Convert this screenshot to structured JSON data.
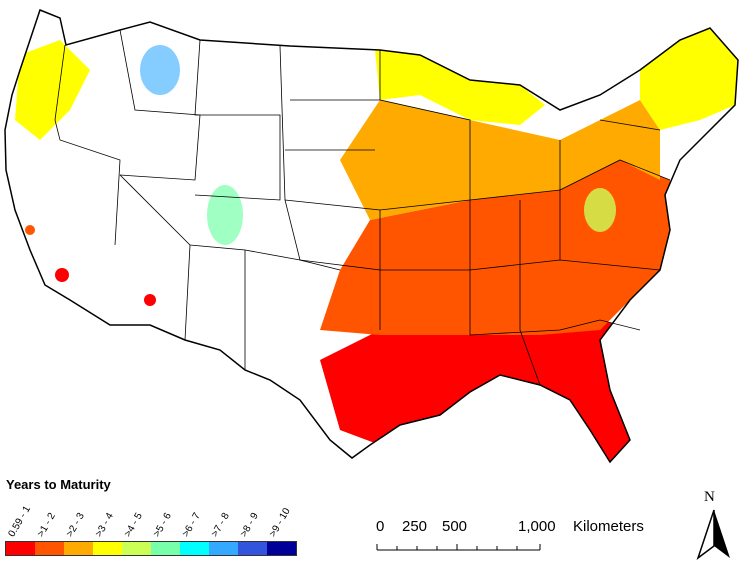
{
  "legend": {
    "title": "Years to Maturity",
    "classes": [
      {
        "label": "0.59 - 1",
        "color": "#ff0000"
      },
      {
        "label": ">1 - 2",
        "color": "#ff5500"
      },
      {
        "label": ">2 - 3",
        "color": "#ffaa00"
      },
      {
        "label": ">3 - 4",
        "color": "#ffff00"
      },
      {
        "label": ">4 - 5",
        "color": "#ccff55"
      },
      {
        "label": ">5 - 6",
        "color": "#77ffaa"
      },
      {
        "label": ">6 - 7",
        "color": "#00ffff"
      },
      {
        "label": ">7 - 8",
        "color": "#33aaff"
      },
      {
        "label": ">8 - 9",
        "color": "#3355dd"
      },
      {
        "label": ">9 - 10",
        "color": "#000099"
      }
    ]
  },
  "scale_bar": {
    "ticks": [
      "0",
      "250",
      "500",
      "1,000"
    ],
    "unit": "Kilometers"
  },
  "north_arrow": {
    "label": "N"
  }
}
